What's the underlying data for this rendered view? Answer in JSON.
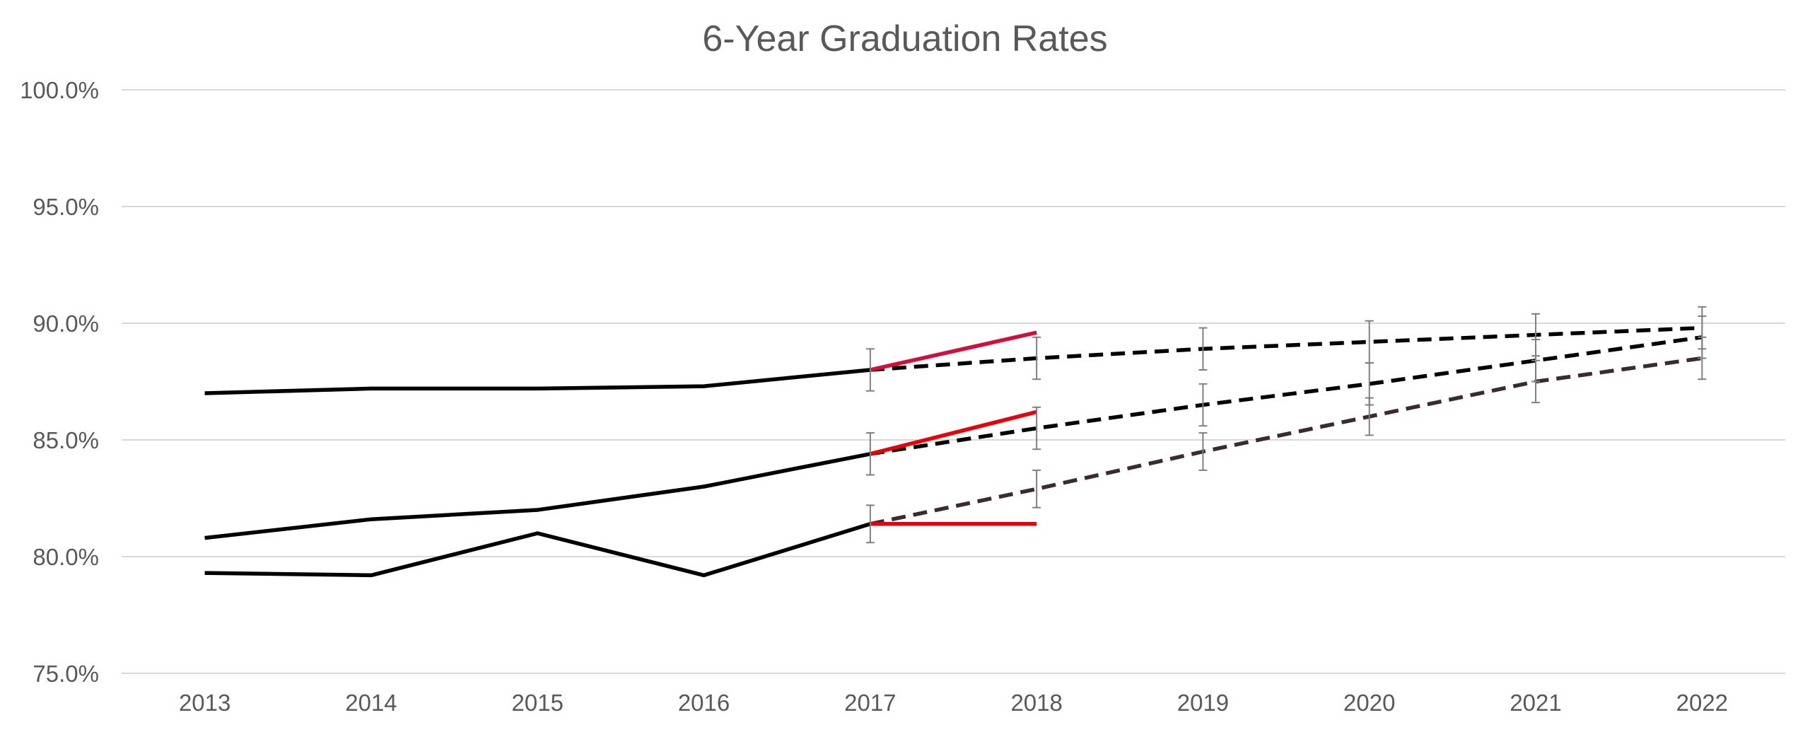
{
  "chart_data": {
    "type": "line",
    "title": "6-Year Graduation Rates",
    "xlabel": "",
    "ylabel": "",
    "categories": [
      "2013",
      "2014",
      "2015",
      "2016",
      "2017",
      "2018",
      "2019",
      "2020",
      "2021",
      "2022"
    ],
    "y_ticks": [
      "75.0%",
      "80.0%",
      "85.0%",
      "90.0%",
      "95.0%",
      "100.0%"
    ],
    "ylim": [
      75,
      100
    ],
    "grid": true,
    "legend": "none",
    "series": [
      {
        "color": "#000000",
        "style": "solid",
        "x": [
          "2013",
          "2014",
          "2015",
          "2016",
          "2017"
        ],
        "values": [
          87.0,
          87.2,
          87.2,
          87.3,
          88.0
        ]
      },
      {
        "color": "#000000",
        "style": "solid",
        "x": [
          "2013",
          "2014",
          "2015",
          "2016",
          "2017"
        ],
        "values": [
          80.8,
          81.6,
          82.0,
          83.0,
          84.4
        ]
      },
      {
        "color": "#000000",
        "style": "solid",
        "x": [
          "2013",
          "2014",
          "2015",
          "2016",
          "2017"
        ],
        "values": [
          79.3,
          79.2,
          81.0,
          79.2,
          81.4
        ]
      },
      {
        "color": "#d0103a",
        "style": "solid",
        "x": [
          "2017",
          "2018"
        ],
        "values": [
          88.0,
          89.6
        ]
      },
      {
        "color": "#e8000b",
        "style": "solid",
        "x": [
          "2017",
          "2018"
        ],
        "values": [
          84.4,
          86.2
        ]
      },
      {
        "color": "#e8000b",
        "style": "solid",
        "x": [
          "2017",
          "2018"
        ],
        "values": [
          81.4,
          81.4
        ]
      },
      {
        "color": "#000000",
        "style": "dashed",
        "x": [
          "2017",
          "2018",
          "2019",
          "2020",
          "2021",
          "2022"
        ],
        "values": [
          88.0,
          88.5,
          88.9,
          89.2,
          89.5,
          89.8
        ],
        "error_bars": [
          0.9,
          0.9,
          0.9,
          0.9,
          0.9,
          0.9
        ]
      },
      {
        "color": "#000000",
        "style": "dashed",
        "x": [
          "2017",
          "2018",
          "2019",
          "2020",
          "2021",
          "2022"
        ],
        "values": [
          84.4,
          85.5,
          86.5,
          87.4,
          88.4,
          89.4
        ],
        "error_bars": [
          0.9,
          0.9,
          0.9,
          0.9,
          0.9,
          0.9
        ]
      },
      {
        "color": "#3b2a33",
        "style": "dashed",
        "x": [
          "2017",
          "2018",
          "2019",
          "2020",
          "2021",
          "2022"
        ],
        "values": [
          81.4,
          82.9,
          84.5,
          86.0,
          87.5,
          88.5
        ],
        "error_bars": [
          0.8,
          0.8,
          0.8,
          0.8,
          0.9,
          0.9
        ]
      }
    ]
  }
}
